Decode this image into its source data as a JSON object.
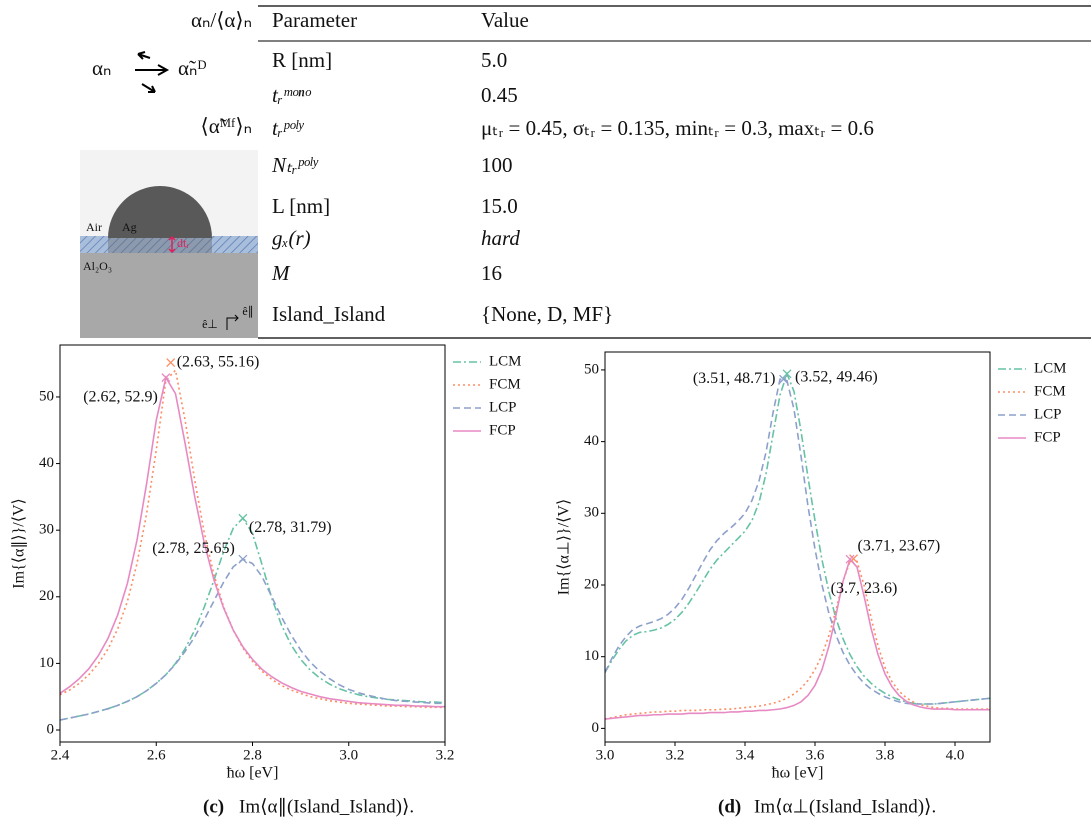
{
  "figure": {
    "diagram": {
      "ratio_label": "αₙ/⟨α⟩ₙ",
      "alpha_label": "αₙ",
      "dipole_label": "α̃ₙᴰ",
      "mean_field_label": "⟨α̃ᴹᶠ⟩ₙ",
      "air": "Air",
      "ag": "Ag",
      "thickness": "dtᵣ",
      "substrate": "Al₂O₃",
      "e_perp": "ê⊥",
      "e_par": "ê∥"
    },
    "table": {
      "header": [
        "Parameter",
        "Value"
      ],
      "rows": [
        [
          "R   [nm]",
          "5.0"
        ],
        [
          "tᵣᵐᵒⁿᵒ",
          "0.45"
        ],
        [
          "tᵣᵖᵒˡʸ",
          "μₜᵣ = 0.45, σₜᵣ = 0.135, minₜᵣ = 0.3, maxₜᵣ = 0.6"
        ],
        [
          "Nₜᵣᵖᵒˡʸ",
          "100"
        ],
        [
          "L   [nm]",
          "15.0"
        ],
        [
          "gₓ(r)",
          "hard"
        ],
        [
          "M",
          "16"
        ],
        [
          "Island_Island",
          "{None, D, MF}"
        ]
      ]
    }
  },
  "chart_data": [
    {
      "type": "line",
      "caption_label": "(c)",
      "caption": "Im⟨α∥(Island_Island)⟩.",
      "xlabel": "ħω [eV]",
      "ylabel": "Im{⟨α∥⟩}/⟨V⟩",
      "xlim": [
        2.4,
        3.2
      ],
      "ylim": [
        -1.8,
        57.8
      ],
      "xticks": [
        2.4,
        2.6,
        2.8,
        {
          "value": 3,
          "label": "3.0"
        },
        3.2
      ],
      "yticks": [
        0,
        10,
        20,
        30,
        40,
        50
      ],
      "grid": false,
      "legend": "outside right",
      "x": [
        2.4,
        2.42,
        2.44,
        2.46,
        2.48,
        2.5,
        2.52,
        2.54,
        2.56,
        2.58,
        2.6,
        2.62,
        2.64,
        2.66,
        2.68,
        2.7,
        2.72,
        2.74,
        2.76,
        2.78,
        2.8,
        2.82,
        2.84,
        2.86,
        2.88,
        2.9,
        2.92,
        2.94,
        2.96,
        2.98,
        3.0,
        3.02,
        3.04,
        3.06,
        3.08,
        3.1,
        3.12,
        3.14,
        3.16,
        3.18,
        3.2
      ],
      "series": [
        {
          "name": "LCM",
          "color": "#66c2a5",
          "linestyle": "dashdot",
          "values": [
            1.5,
            1.8,
            2.1,
            2.4,
            2.8,
            3.2,
            3.7,
            4.3,
            5.0,
            5.9,
            7.0,
            8.3,
            10.0,
            12.2,
            15.0,
            18.5,
            22.5,
            26.8,
            30.3,
            31.79,
            29.5,
            24.8,
            19.8,
            15.8,
            12.8,
            10.6,
            9.0,
            7.8,
            6.9,
            6.2,
            5.7,
            5.3,
            5.0,
            4.8,
            4.6,
            4.5,
            4.4,
            4.3,
            4.2,
            4.2,
            4.1
          ]
        },
        {
          "name": "FCM",
          "color": "#fc8d62",
          "linestyle": "dotted",
          "values": [
            5.3,
            6.0,
            7.0,
            8.3,
            10.0,
            12.2,
            15.2,
            19.3,
            25.0,
            32.5,
            42.0,
            52.5,
            54.0,
            46.5,
            37.5,
            29.5,
            23.3,
            18.5,
            15.0,
            12.3,
            10.3,
            8.8,
            7.6,
            6.7,
            6.0,
            5.5,
            5.0,
            4.7,
            4.4,
            4.2,
            4.0,
            3.9,
            3.8,
            3.7,
            3.6,
            3.6,
            3.5,
            3.5,
            3.4,
            3.4,
            3.4
          ]
        },
        {
          "name": "LCP",
          "color": "#8da0cb",
          "linestyle": "dashed",
          "values": [
            1.5,
            1.8,
            2.1,
            2.4,
            2.8,
            3.2,
            3.7,
            4.3,
            5.0,
            5.9,
            7.0,
            8.3,
            9.9,
            11.8,
            14.0,
            16.6,
            19.4,
            22.2,
            24.5,
            25.65,
            25.0,
            23.0,
            20.0,
            17.0,
            14.3,
            12.0,
            10.2,
            8.8,
            7.7,
            6.8,
            6.1,
            5.6,
            5.2,
            4.9,
            4.6,
            4.4,
            4.3,
            4.2,
            4.1,
            4.0,
            4.0
          ]
        },
        {
          "name": "FCP",
          "color": "#e78ac3",
          "linestyle": "solid",
          "values": [
            5.5,
            6.5,
            7.7,
            9.2,
            11.2,
            13.8,
            17.3,
            22.0,
            28.5,
            37.0,
            46.5,
            52.9,
            50.5,
            43.0,
            35.0,
            28.0,
            22.5,
            18.3,
            15.0,
            12.5,
            10.6,
            9.1,
            8.0,
            7.1,
            6.4,
            5.8,
            5.4,
            5.0,
            4.7,
            4.5,
            4.3,
            4.1,
            4.0,
            3.9,
            3.8,
            3.7,
            3.7,
            3.6,
            3.6,
            3.5,
            3.5
          ]
        }
      ],
      "annotations": [
        {
          "x": 2.63,
          "y": 55.16,
          "label": "(2.63, 55.16)",
          "color": "#fc8d62"
        },
        {
          "x": 2.62,
          "y": 52.9,
          "label": "(2.62, 52.9)",
          "color": "#e78ac3"
        },
        {
          "x": 2.78,
          "y": 25.65,
          "label": "(2.78, 25.65)",
          "color": "#8da0cb"
        },
        {
          "x": 2.78,
          "y": 31.79,
          "label": "(2.78, 31.79)",
          "color": "#66c2a5"
        }
      ]
    },
    {
      "type": "line",
      "caption_label": "(d)",
      "caption": "Im⟨α⊥(Island_Island)⟩.",
      "xlabel": "ħω [eV]",
      "ylabel": "Im{⟨α⊥⟩}/⟨V⟩",
      "xlim": [
        3.0,
        4.1
      ],
      "ylim": [
        -1.9,
        52.5
      ],
      "xticks": [
        {
          "value": 3,
          "label": "3.0"
        },
        3.2,
        3.4,
        3.6,
        3.8,
        {
          "value": 4,
          "label": "4.0"
        }
      ],
      "yticks": [
        0,
        10,
        20,
        30,
        40,
        50
      ],
      "grid": false,
      "legend": "outside right",
      "x": [
        3.0,
        3.02,
        3.04,
        3.06,
        3.08,
        3.1,
        3.12,
        3.14,
        3.16,
        3.18,
        3.2,
        3.22,
        3.24,
        3.26,
        3.28,
        3.3,
        3.32,
        3.34,
        3.36,
        3.38,
        3.4,
        3.42,
        3.44,
        3.46,
        3.48,
        3.5,
        3.52,
        3.54,
        3.56,
        3.58,
        3.6,
        3.62,
        3.64,
        3.66,
        3.68,
        3.7,
        3.72,
        3.74,
        3.76,
        3.78,
        3.8,
        3.82,
        3.84,
        3.86,
        3.88,
        3.9,
        3.92,
        3.94,
        3.96,
        3.98,
        4.0,
        4.02,
        4.04,
        4.06,
        4.08,
        4.1
      ],
      "series": [
        {
          "name": "LCM",
          "color": "#66c2a5",
          "linestyle": "dashdot",
          "values": [
            7.8,
            9.5,
            11.0,
            12.2,
            13.0,
            13.4,
            13.5,
            13.7,
            14.0,
            14.5,
            15.2,
            16.2,
            17.5,
            19.0,
            20.6,
            22.2,
            23.5,
            24.5,
            25.5,
            26.5,
            27.5,
            29.0,
            31.5,
            35.5,
            41.0,
            46.5,
            49.46,
            47.0,
            41.5,
            35.0,
            29.0,
            23.5,
            19.0,
            15.3,
            12.5,
            10.3,
            8.6,
            7.3,
            6.3,
            5.5,
            4.9,
            4.4,
            4.0,
            3.7,
            3.5,
            3.4,
            3.4,
            3.4,
            3.5,
            3.6,
            3.7,
            3.8,
            3.9,
            4.0,
            4.1,
            4.2
          ]
        },
        {
          "name": "FCM",
          "color": "#fc8d62",
          "linestyle": "dotted",
          "values": [
            1.3,
            1.5,
            1.7,
            1.9,
            2.0,
            2.1,
            2.2,
            2.3,
            2.3,
            2.4,
            2.4,
            2.5,
            2.5,
            2.5,
            2.6,
            2.6,
            2.6,
            2.7,
            2.7,
            2.8,
            2.9,
            3.0,
            3.1,
            3.3,
            3.5,
            3.8,
            4.2,
            4.8,
            5.6,
            6.7,
            8.2,
            10.2,
            13.0,
            16.5,
            20.5,
            23.3,
            23.3,
            20.0,
            15.5,
            11.5,
            8.5,
            6.5,
            5.2,
            4.3,
            3.7,
            3.3,
            3.1,
            2.9,
            2.8,
            2.8,
            2.7,
            2.7,
            2.7,
            2.7,
            2.7,
            2.7
          ]
        },
        {
          "name": "LCP",
          "color": "#8da0cb",
          "linestyle": "dashed",
          "values": [
            7.8,
            9.8,
            11.5,
            12.8,
            13.8,
            14.3,
            14.6,
            14.9,
            15.3,
            15.9,
            16.8,
            18.0,
            19.6,
            21.4,
            23.2,
            24.9,
            26.2,
            27.2,
            28.0,
            28.9,
            30.0,
            31.8,
            34.5,
            38.5,
            44.0,
            48.71,
            48.5,
            44.5,
            38.0,
            31.0,
            25.0,
            20.0,
            16.0,
            13.0,
            10.6,
            8.8,
            7.4,
            6.3,
            5.5,
            4.9,
            4.4,
            4.0,
            3.7,
            3.5,
            3.4,
            3.4,
            3.4,
            3.4,
            3.5,
            3.6,
            3.7,
            3.8,
            3.9,
            4.0,
            4.1,
            4.2
          ]
        },
        {
          "name": "FCP",
          "color": "#e78ac3",
          "linestyle": "solid",
          "values": [
            1.3,
            1.4,
            1.5,
            1.6,
            1.7,
            1.8,
            1.8,
            1.9,
            1.9,
            2.0,
            2.0,
            2.0,
            2.1,
            2.1,
            2.1,
            2.2,
            2.2,
            2.2,
            2.3,
            2.3,
            2.4,
            2.4,
            2.5,
            2.5,
            2.6,
            2.7,
            2.9,
            3.2,
            3.7,
            4.6,
            6.0,
            8.2,
            11.5,
            15.8,
            20.5,
            23.6,
            22.5,
            18.5,
            14.0,
            10.3,
            7.6,
            5.8,
            4.6,
            3.8,
            3.3,
            3.0,
            2.8,
            2.7,
            2.7,
            2.7,
            2.6,
            2.6,
            2.6,
            2.6,
            2.6,
            2.6
          ]
        }
      ],
      "annotations": [
        {
          "x": 3.51,
          "y": 48.71,
          "label": "(3.51, 48.71)",
          "color": "#8da0cb"
        },
        {
          "x": 3.52,
          "y": 49.46,
          "label": "(3.52, 49.46)",
          "color": "#66c2a5"
        },
        {
          "x": 3.71,
          "y": 23.67,
          "label": "(3.71, 23.67)",
          "color": "#fc8d62"
        },
        {
          "x": 3.7,
          "y": 23.6,
          "label": "(3.7, 23.6)",
          "color": "#e78ac3"
        }
      ]
    }
  ]
}
